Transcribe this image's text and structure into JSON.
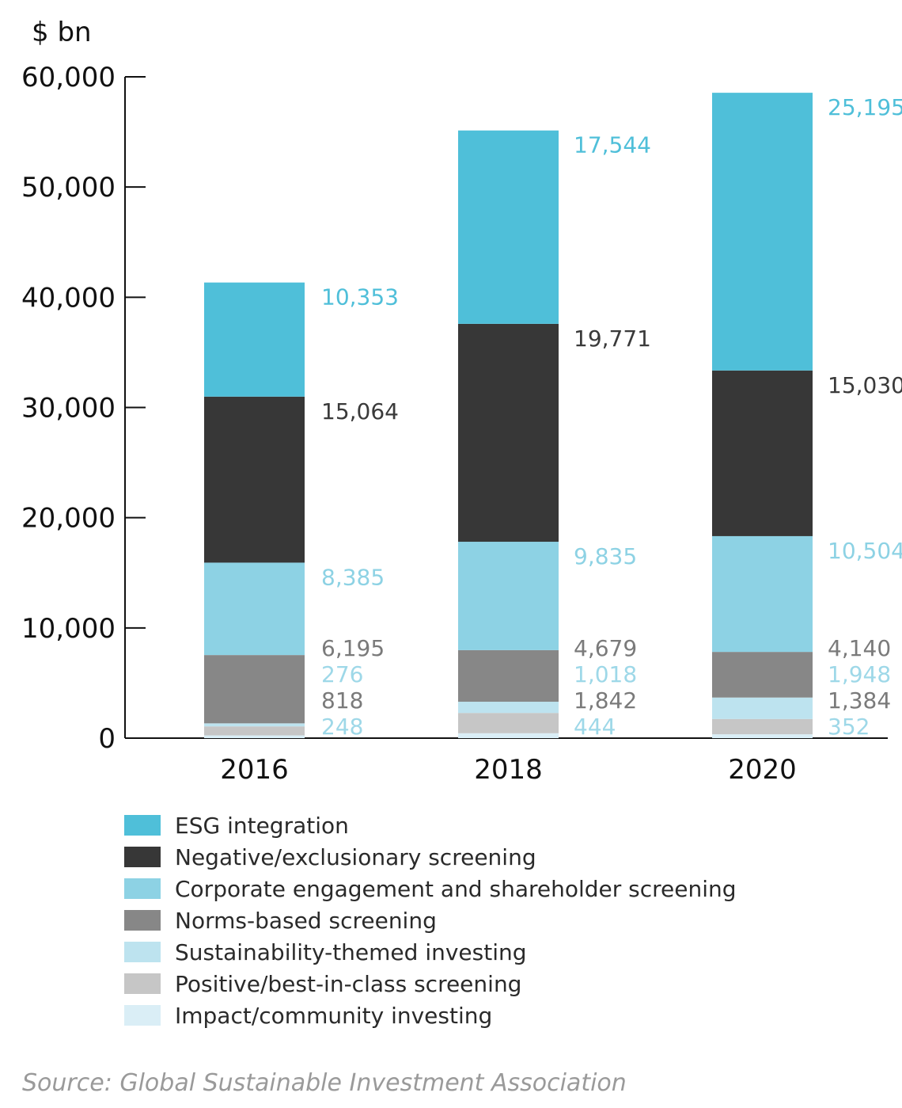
{
  "chart_data": {
    "type": "bar",
    "stacked": true,
    "unit_label": "$ bn",
    "categories": [
      "2016",
      "2018",
      "2020"
    ],
    "ylim": [
      0,
      60000
    ],
    "yticks": [
      0,
      10000,
      20000,
      30000,
      40000,
      50000,
      60000
    ],
    "ytick_labels": [
      "0",
      "10,000",
      "20,000",
      "30,000",
      "40,000",
      "50,000",
      "60,000"
    ],
    "grid": false,
    "legend_position": "bottom",
    "series": [
      {
        "name": "Impact/community investing",
        "color": "#daeef6",
        "values": [
          248,
          444,
          352
        ],
        "labels": [
          "248",
          "444",
          "352"
        ],
        "label_color": "#9ed8e8"
      },
      {
        "name": "Positive/best-in-class screening",
        "color": "#c6c6c6",
        "values": [
          818,
          1842,
          1384
        ],
        "labels": [
          "818",
          "1,842",
          "1,384"
        ],
        "label_color": "#7a7a7a"
      },
      {
        "name": "Sustainability-themed investing",
        "color": "#bde3ef",
        "values": [
          276,
          1018,
          1948
        ],
        "labels": [
          "276",
          "1,018",
          "1,948"
        ],
        "label_color": "#9ed8e8"
      },
      {
        "name": "Norms-based screening",
        "color": "#878787",
        "values": [
          6195,
          4679,
          4140
        ],
        "labels": [
          "6,195",
          "4,679",
          "4,140"
        ],
        "label_color": "#7a7a7a"
      },
      {
        "name": "Corporate engagement and shareholder screening",
        "color": "#8dd2e4",
        "values": [
          8385,
          9835,
          10504
        ],
        "labels": [
          "8,385",
          "9,835",
          "10,504"
        ],
        "label_color": "#8dd2e4"
      },
      {
        "name": "Negative/exclusionary screening",
        "color": "#373737",
        "values": [
          15064,
          19771,
          15030
        ],
        "labels": [
          "15,064",
          "19,771",
          "15,030"
        ],
        "label_color": "#3a3a3a"
      },
      {
        "name": "ESG integration",
        "color": "#4fbfd9",
        "values": [
          10353,
          17544,
          25195
        ],
        "labels": [
          "10,353",
          "17,544",
          "25,195"
        ],
        "label_color": "#4fbfd9"
      }
    ],
    "legend": [
      {
        "label": "ESG integration",
        "color": "#4fbfd9"
      },
      {
        "label": "Negative/exclusionary screening",
        "color": "#373737"
      },
      {
        "label": "Corporate engagement and shareholder screening",
        "color": "#8dd2e4"
      },
      {
        "label": "Norms-based screening",
        "color": "#878787"
      },
      {
        "label": "Sustainability-themed investing",
        "color": "#bde3ef"
      },
      {
        "label": "Positive/best-in-class screening",
        "color": "#c6c6c6"
      },
      {
        "label": "Impact/community investing",
        "color": "#daeef6"
      }
    ]
  },
  "source": "Source: Global Sustainable Investment Association"
}
